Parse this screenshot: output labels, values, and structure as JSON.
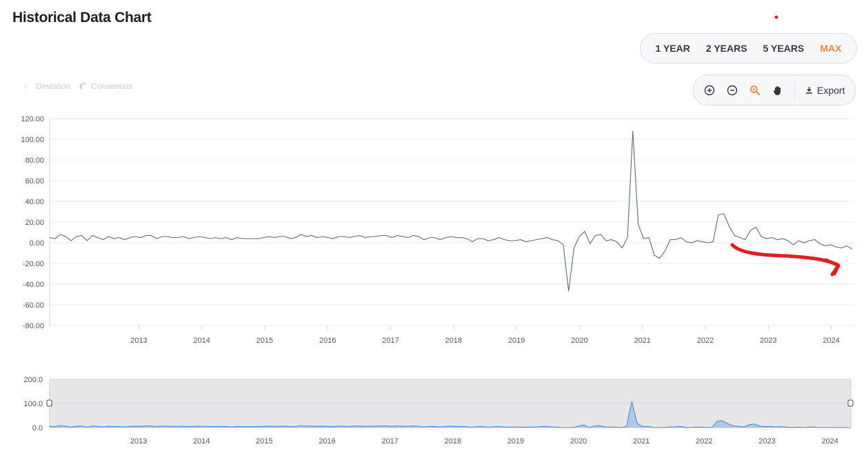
{
  "header": {
    "title": "Historical Data Chart"
  },
  "range_buttons": [
    "1 YEAR",
    "2 YEARS",
    "5 YEARS",
    "MAX"
  ],
  "active_range": "MAX",
  "legend": [
    "Deviation",
    "Consensus"
  ],
  "toolbar": {
    "export_label": "Export",
    "icons": [
      "zoom-in-icon",
      "zoom-out-icon",
      "magnify-icon",
      "pan-hand-icon",
      "download-icon"
    ]
  },
  "colors": {
    "line": "#5b6b80",
    "navigator_line": "#4a90d9",
    "accent": "#f0883a",
    "annotation": "#e02020"
  },
  "chart_data": [
    {
      "type": "line",
      "ylim": [
        -80,
        120
      ],
      "yticks": [
        "120.00",
        "100.00",
        "80.00",
        "60.00",
        "40.00",
        "20.00",
        "0.00",
        "-20.00",
        "-40.00",
        "-60.00",
        "-80.00"
      ],
      "xticks": [
        "2013",
        "2014",
        "2015",
        "2016",
        "2017",
        "2018",
        "2019",
        "2020",
        "2021",
        "2022",
        "2023",
        "2024"
      ],
      "series": [
        {
          "x_start": "2012-02",
          "x_end": "2024-11",
          "values": [
            5,
            4,
            8,
            6,
            2,
            6,
            7,
            2,
            7,
            5,
            3,
            6,
            4,
            5,
            3,
            5,
            6,
            5,
            7,
            7,
            4,
            6,
            6,
            5,
            5,
            6,
            4,
            5,
            6,
            5,
            4,
            5,
            4,
            5,
            3,
            5,
            4,
            4,
            4,
            4,
            5,
            6,
            5,
            6,
            6,
            4,
            5,
            8,
            6,
            7,
            5,
            6,
            5,
            4,
            6,
            6,
            5,
            6,
            7,
            5,
            6,
            6,
            7,
            7,
            5,
            7,
            6,
            5,
            7,
            6,
            3,
            5,
            5,
            3,
            5,
            6,
            5,
            5,
            4,
            1,
            4,
            4,
            2,
            3,
            5,
            3,
            2,
            2,
            3,
            1,
            2,
            3,
            4,
            5,
            3,
            2,
            -2,
            -47,
            -5,
            6,
            11,
            -1,
            7,
            8,
            2,
            3,
            1,
            -5,
            5,
            108,
            18,
            4,
            5,
            -12,
            -15,
            -8,
            3,
            3,
            5,
            1,
            0,
            2,
            1,
            0,
            1,
            27,
            28,
            16,
            7,
            5,
            3,
            12,
            15,
            6,
            4,
            5,
            3,
            4,
            2,
            -2,
            2,
            0,
            2,
            3,
            -1,
            -3,
            -2,
            -4,
            -5,
            -3,
            -6
          ]
        }
      ]
    },
    {
      "type": "area",
      "ylim": [
        0,
        200
      ],
      "yticks": [
        "200.0",
        "100.0",
        "0.0"
      ],
      "xticks": [
        "2013",
        "2014",
        "2015",
        "2016",
        "2017",
        "2018",
        "2019",
        "2020",
        "2021",
        "2022",
        "2023",
        "2024"
      ]
    }
  ]
}
